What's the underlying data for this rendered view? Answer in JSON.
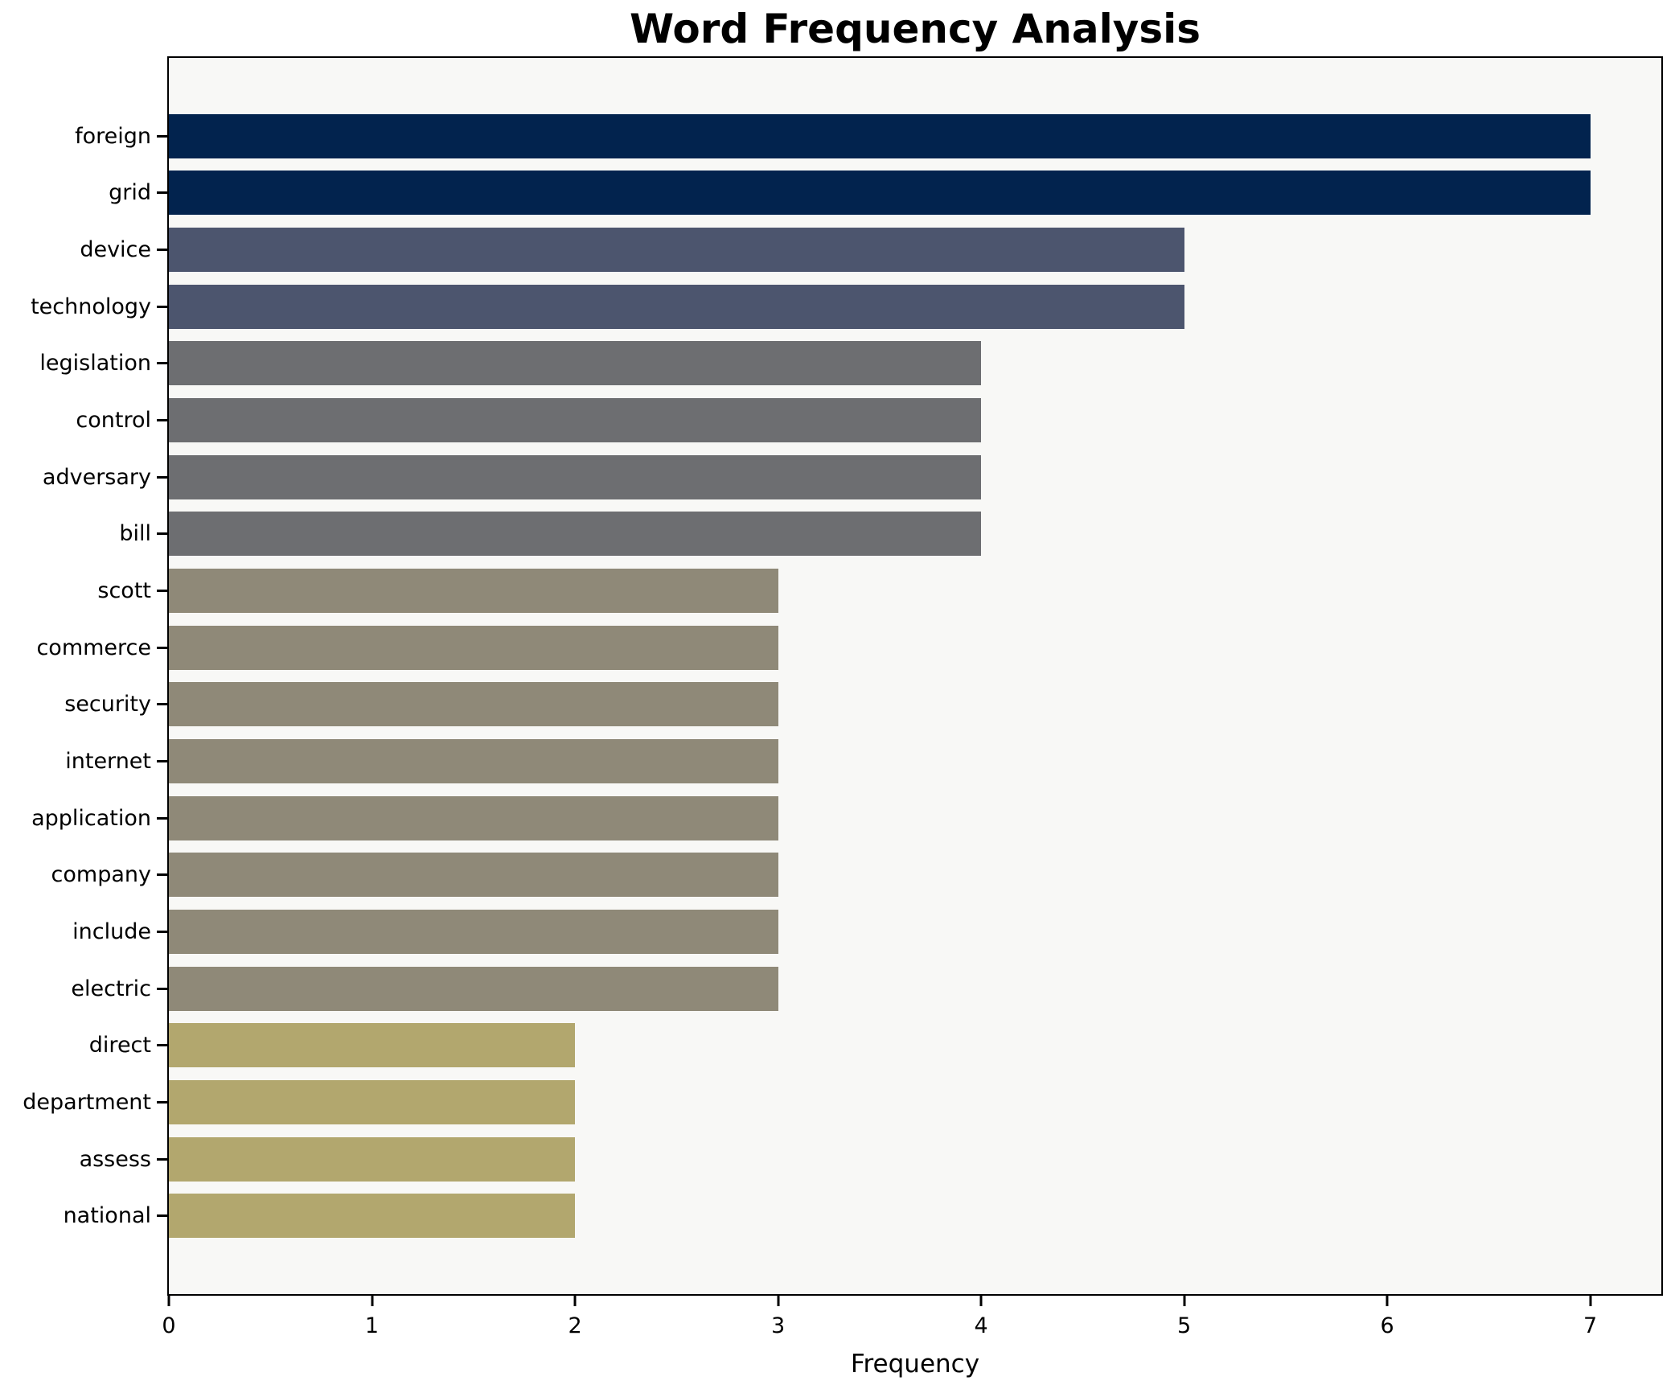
{
  "chart_data": {
    "type": "bar",
    "orientation": "horizontal",
    "title": "Word Frequency Analysis",
    "xlabel": "Frequency",
    "ylabel": "",
    "categories": [
      "foreign",
      "grid",
      "device",
      "technology",
      "legislation",
      "control",
      "adversary",
      "bill",
      "scott",
      "commerce",
      "security",
      "internet",
      "application",
      "company",
      "include",
      "electric",
      "direct",
      "department",
      "assess",
      "national"
    ],
    "values": [
      7,
      7,
      5,
      5,
      4,
      4,
      4,
      4,
      3,
      3,
      3,
      3,
      3,
      3,
      3,
      3,
      2,
      2,
      2,
      2
    ],
    "bar_colors": [
      "#02234E",
      "#02234E",
      "#4C556E",
      "#4C556E",
      "#6D6E71",
      "#6D6E71",
      "#6D6E71",
      "#6D6E71",
      "#8F8978",
      "#8F8978",
      "#8F8978",
      "#8F8978",
      "#8F8978",
      "#8F8978",
      "#8F8978",
      "#8F8978",
      "#B2A76E",
      "#B2A76E",
      "#B2A76E",
      "#B2A76E"
    ],
    "value_color_map": {
      "7": "#02234E",
      "5": "#4C556E",
      "4": "#6D6E71",
      "3": "#8F8978",
      "2": "#B2A76E"
    },
    "x_ticks": [
      0,
      1,
      2,
      3,
      4,
      5,
      6,
      7
    ],
    "xlim": [
      0,
      7.35
    ],
    "grid": false,
    "legend": null,
    "plot_background": "#F8F8F6",
    "figure_background": "#FFFFFF"
  }
}
